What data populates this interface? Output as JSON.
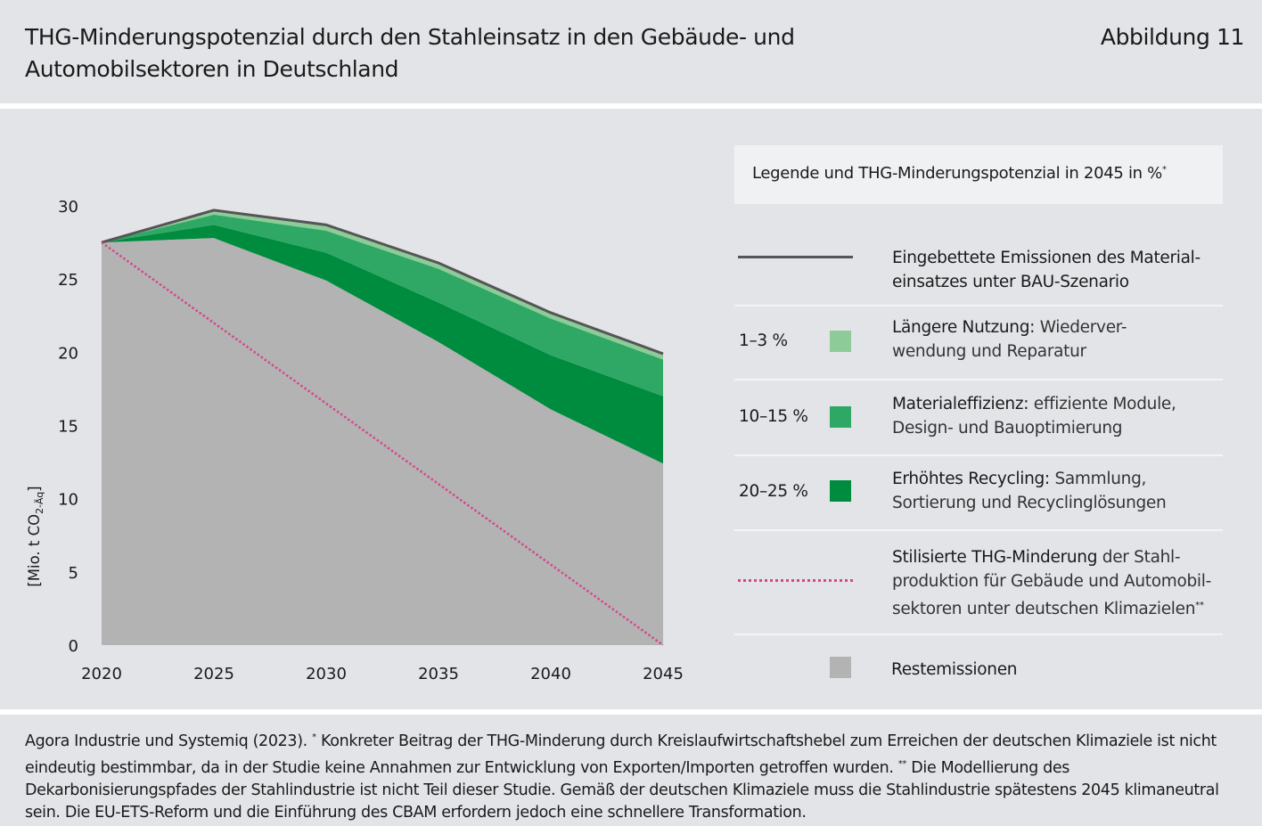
{
  "header": {
    "title_line1": "THG-Minderungspotenzial durch den Stahleinsatz in den Gebäude- und",
    "title_line2": "Automobilsektoren in Deutschland",
    "figure_label": "Abbildung 11"
  },
  "chart_data": {
    "type": "area",
    "ylabel_main": "[Mio. t CO",
    "ylabel_sub": "2-Äq",
    "ylabel_end": "]",
    "x": [
      2020,
      2025,
      2030,
      2035,
      2040,
      2045
    ],
    "x_tick_labels": [
      "2020",
      "2025",
      "2030",
      "2035",
      "2040",
      "2045"
    ],
    "y_ticks": [
      0,
      5,
      10,
      15,
      20,
      25,
      30
    ],
    "y_tick_labels": [
      "0",
      "5",
      "10",
      "15",
      "20",
      "25",
      "30"
    ],
    "ylim": [
      0,
      30
    ],
    "xlim": [
      2020,
      2045
    ],
    "grid": false,
    "series": [
      {
        "name": "Restemissionen",
        "type": "area",
        "color": "#b3b3b3",
        "values": [
          27.5,
          27.8,
          24.9,
          20.7,
          16.1,
          12.4
        ]
      },
      {
        "name": "Erhöhtes Recycling",
        "type": "stacked-area",
        "color": "#008c3f",
        "values": [
          0.0,
          0.9,
          1.9,
          2.7,
          3.7,
          4.6
        ]
      },
      {
        "name": "Materialeffizienz",
        "type": "stacked-area",
        "color": "#2fa865",
        "values": [
          0.0,
          0.7,
          1.5,
          2.3,
          2.5,
          2.5
        ]
      },
      {
        "name": "Längere Nutzung",
        "type": "stacked-area",
        "color": "#8dcc98",
        "values": [
          0.0,
          0.3,
          0.4,
          0.4,
          0.4,
          0.4
        ]
      },
      {
        "name": "Eingebettete Emissionen des Materialeinsatzes unter BAU-Szenario",
        "type": "line",
        "color": "#555555",
        "values": [
          27.5,
          29.7,
          28.7,
          26.1,
          22.7,
          19.9
        ]
      },
      {
        "name": "Stilisierte THG-Minderung",
        "type": "dotted-line",
        "color": "#d6458f",
        "values": [
          27.5,
          22.0,
          16.5,
          11.0,
          5.5,
          0.0
        ]
      }
    ]
  },
  "legend": {
    "title": "Legende und THG-Minderungspotenzial in 2045 in %",
    "title_sup": "*",
    "bau_line1": "Eingebettete Emissionen des Material-",
    "bau_line2": "einsatzes unter BAU-Szenario",
    "nutzung_pct": "1–3 %",
    "nutzung_bold": "Längere Nutzung:",
    "nutzung_rest": "  Wiederver-",
    "nutzung_line2": "wendung und Reparatur",
    "effizienz_pct": "10–15 %",
    "effizienz_bold": "Materialeffizienz:",
    "effizienz_rest": " effiziente Module,",
    "effizienz_line2": "Design- und Bauoptimierung",
    "recycling_pct": "20–25 %",
    "recycling_bold": "Erhöhtes Recycling:",
    "recycling_rest": " Sammlung,",
    "recycling_line2": "Sortierung und Recyclinglösungen",
    "stil_bold": "Stilisierte THG-Minderung",
    "stil_rest": " der Stahl-",
    "stil_line2": "produktion für Gebäude und Automobil-",
    "stil_line3": "sektoren unter deutschen Klimazielen",
    "stil_sup": "**",
    "rest_label": "Restemissionen",
    "colors": {
      "nutzung": "#8dcc98",
      "effizienz": "#2fa865",
      "recycling": "#008c3f",
      "rest": "#b3b3b3",
      "bau_line": "#555555",
      "stil_line": "#d6458f"
    }
  },
  "footnote": {
    "part1": "Agora Industrie und Systemiq (2023). ",
    "sup1": "*",
    "part2": " Konkreter Beitrag der THG-Minderung durch Kreislaufwirtschaftshebel zum Erreichen der deutschen Klimaziele ist nicht eindeutig bestimmbar, da in der Studie keine Annahmen zur Entwicklung von Exporten/Importen getroffen wurden. ",
    "sup2": "**",
    "part3": " Die Modellierung des Dekarbonisierungspfades der Stahlindustrie ist nicht Teil dieser Studie. Gemäß der deutschen Klimaziele muss die Stahlindus­trie spätestens 2045 klimaneutral sein. Die EU-ETS-Reform und die Einführung des CBAM erfordern jedoch eine schnellere Transformation."
  }
}
